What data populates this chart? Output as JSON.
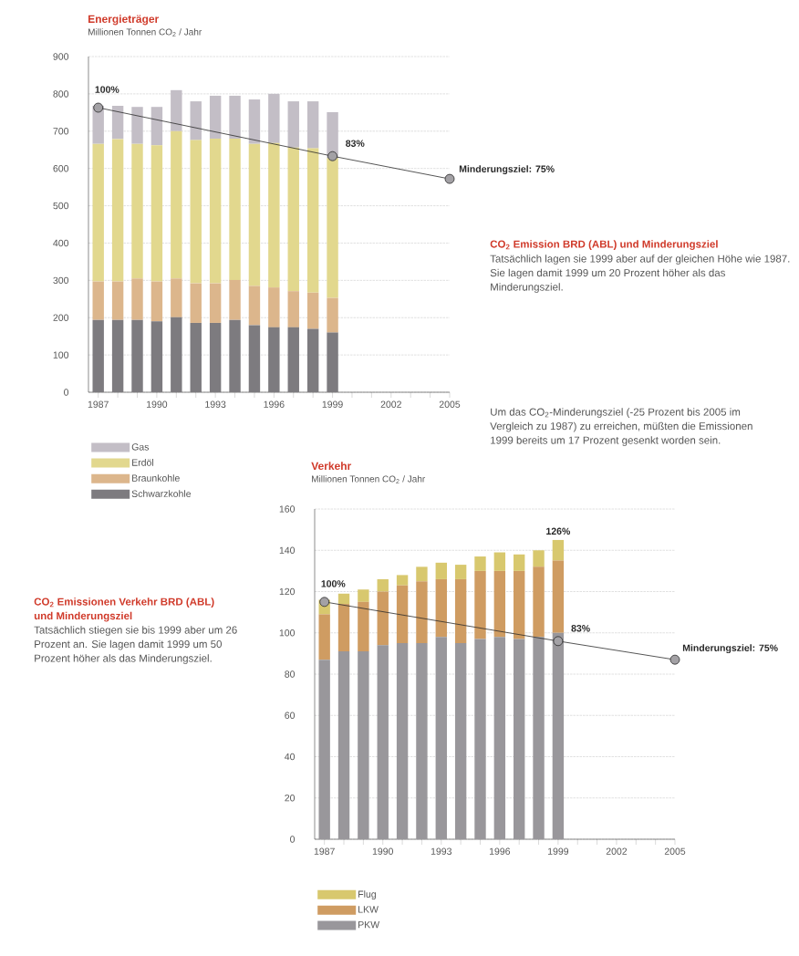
{
  "chart_data": [
    {
      "type": "bar",
      "title": "Energieträger",
      "ylabel": "Millionen Tonnen CO$_{2}$ / Jahr",
      "stacked": true,
      "grid": "y",
      "legend": "bottom left",
      "x": [
        1987,
        1988,
        1989,
        1990,
        1991,
        1992,
        1993,
        1994,
        1995,
        1996,
        1997,
        1998,
        1999
      ],
      "xlim": [
        1986.5,
        2005
      ],
      "xticks": [
        1987,
        {
          "value": 1988,
          "label": null
        },
        {
          "value": 1989,
          "label": null
        },
        1990,
        {
          "value": 1991,
          "label": null
        },
        {
          "value": 1992,
          "label": null
        },
        1993,
        {
          "value": 1994,
          "label": null
        },
        {
          "value": 1995,
          "label": null
        },
        1996,
        {
          "value": 1997,
          "label": null
        },
        {
          "value": 1998,
          "label": null
        },
        1999,
        {
          "value": 2000,
          "label": null
        },
        {
          "value": 2001,
          "label": null
        },
        2002,
        {
          "value": 2003,
          "label": null
        },
        {
          "value": 2004,
          "label": null
        },
        2005
      ],
      "ylim": [
        0,
        900
      ],
      "yticks": [
        0,
        100,
        200,
        300,
        400,
        500,
        600,
        700,
        800,
        900
      ],
      "series": [
        {
          "name": "Schwarzkohle",
          "color": "#7d7b7f",
          "values": [
            194,
            194,
            194,
            190,
            201,
            186,
            186,
            194,
            180,
            174,
            174,
            170,
            160
          ]
        },
        {
          "name": "Braunkohle",
          "color": "#dcb68c",
          "values": [
            103,
            103,
            111,
            107,
            104,
            106,
            106,
            107,
            105,
            107,
            97,
            97,
            93
          ]
        },
        {
          "name": "Erdöl",
          "color": "#e2d88e",
          "values": [
            369,
            382,
            361,
            365,
            395,
            384,
            388,
            379,
            381,
            387,
            385,
            387,
            375
          ]
        },
        {
          "name": "Gas",
          "color": "#c3bec6",
          "values": [
            102,
            89,
            99,
            103,
            110,
            104,
            115,
            115,
            119,
            132,
            124,
            126,
            123
          ]
        },
        {
          "type": "line",
          "color": "#2b2b2b",
          "marker": "circle",
          "x": [
            1987,
            1999,
            2005
          ],
          "values": [
            763,
            633,
            572
          ]
        }
      ],
      "annotations": [
        {
          "text": "100%",
          "x": 1987,
          "y": 763
        },
        {
          "text": "83%",
          "x": 1999,
          "y": 633
        },
        {
          "text": "Minderungsziel: 75%",
          "x": 2005,
          "y": 572
        },
        "CO$_{2}$ Emission BRD (ABL) und Minderungsziel",
        "Tatsächlich lagen sie 1999 aber auf der gleichen Höhe wie 1987. Sie lagen damit 1999 um 20 Prozent höher als das Minderungsziel.",
        "Um das CO$_{2}$-Minderungsziel (-25 Prozent bis 2005 im Vergleich zu 1987) zu erreichen, müßten die Emissionen 1999 bereits um 17 Prozent gesenkt worden sein."
      ]
    },
    {
      "type": "bar",
      "title": "Verkehr",
      "ylabel": "Millionen Tonnen CO$_{2}$ / Jahr",
      "stacked": true,
      "grid": "y",
      "legend": "bottom left",
      "x": [
        1987,
        1988,
        1989,
        1990,
        1991,
        1992,
        1993,
        1994,
        1995,
        1996,
        1997,
        1998,
        1999
      ],
      "xlim": [
        1986.5,
        2005
      ],
      "xticks": [
        1987,
        {
          "value": 1988,
          "label": null
        },
        {
          "value": 1989,
          "label": null
        },
        1990,
        {
          "value": 1991,
          "label": null
        },
        {
          "value": 1992,
          "label": null
        },
        1993,
        {
          "value": 1994,
          "label": null
        },
        {
          "value": 1995,
          "label": null
        },
        1996,
        {
          "value": 1997,
          "label": null
        },
        {
          "value": 1998,
          "label": null
        },
        1999,
        {
          "value": 2000,
          "label": null
        },
        {
          "value": 2001,
          "label": null
        },
        2002,
        {
          "value": 2003,
          "label": null
        },
        {
          "value": 2004,
          "label": null
        },
        2005
      ],
      "ylim": [
        0,
        160
      ],
      "yticks": [
        0,
        20,
        40,
        60,
        80,
        100,
        120,
        140,
        160
      ],
      "series": [
        {
          "name": "PKW",
          "color": "#99979b",
          "values": [
            87,
            91,
            91,
            94,
            95,
            95,
            98,
            95,
            97,
            98,
            97,
            98,
            100
          ]
        },
        {
          "name": "LKW",
          "color": "#cf9c62",
          "values": [
            22,
            23,
            24,
            26,
            28,
            30,
            28,
            31,
            33,
            32,
            33,
            34,
            35
          ]
        },
        {
          "name": "Flug",
          "color": "#d8c86e",
          "values": [
            7,
            5,
            6,
            6,
            5,
            7,
            8,
            7,
            7,
            9,
            8,
            8,
            10
          ]
        },
        {
          "type": "line",
          "color": "#2b2b2b",
          "marker": "circle",
          "x": [
            1987,
            1999,
            2005
          ],
          "values": [
            115,
            96,
            87
          ]
        }
      ],
      "annotations": [
        {
          "text": "100%",
          "x": 1987,
          "y": 115
        },
        {
          "text": "126%",
          "x": 1999,
          "y": 144
        },
        {
          "text": "83%",
          "x": 1999,
          "y": 96
        },
        {
          "text": "Minderungsziel: 75%",
          "x": 2005,
          "y": 87
        },
        "CO$_{2}$ Emissionen Verkehr BRD (ABL) und Minderungsziel",
        "Tatsächlich stiegen sie bis 1999 aber um 26 Prozent an. Sie lagen damit 1999 um 50 Prozent höher als das Minderungsziel."
      ]
    }
  ]
}
